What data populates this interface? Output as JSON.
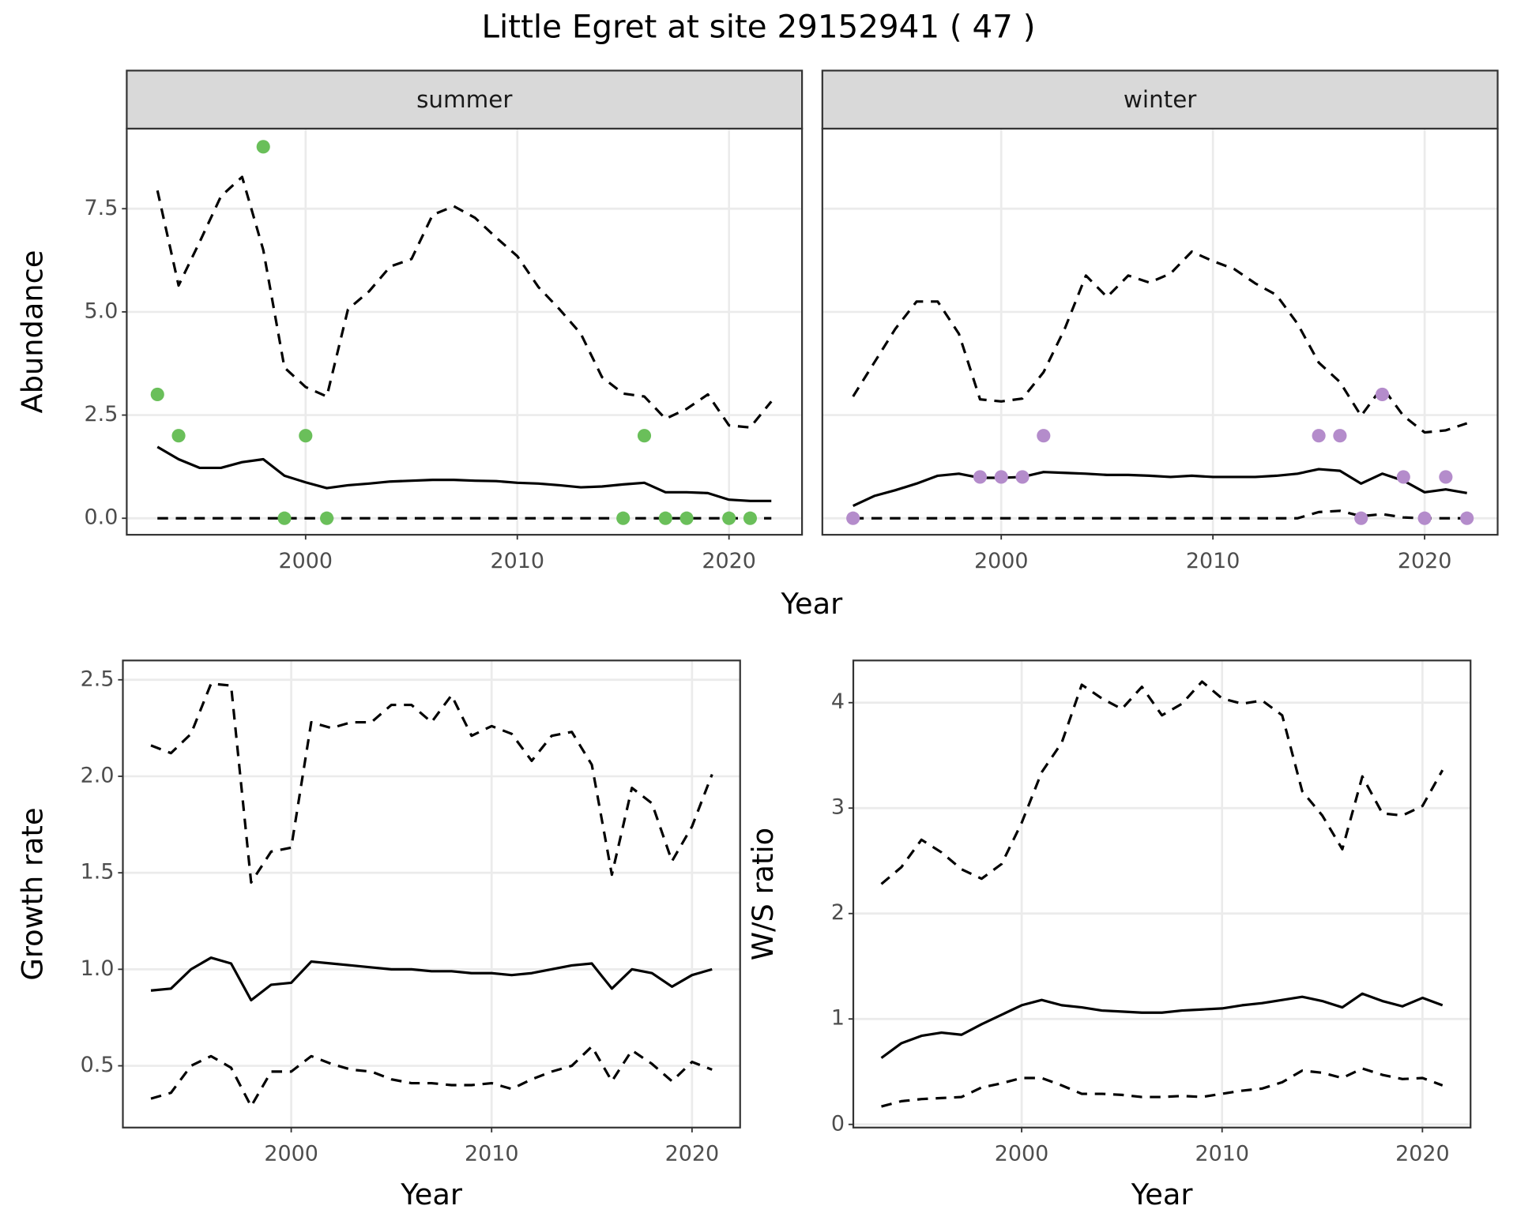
{
  "title": "Little Egret at site 29152941 ( 47 )",
  "chart_data": [
    {
      "type": "line",
      "xlabel": "Year",
      "ylabel": "Abundance",
      "grid": true,
      "xlim": [
        1991.55,
        2023.45
      ],
      "xticks": [
        2000,
        2010,
        2020
      ],
      "ylim": [
        -0.4,
        9.44
      ],
      "yticks": [
        {
          "value": 0,
          "label": "0.0"
        },
        2.5,
        {
          "value": 5,
          "label": "5.0"
        },
        7.5
      ],
      "facets": [
        {
          "title": "summer",
          "x": [
            1993,
            1994,
            1995,
            1996,
            1997,
            1998,
            1999,
            2000,
            2001,
            2002,
            2003,
            2004,
            2005,
            2006,
            2007,
            2008,
            2009,
            2010,
            2011,
            2012,
            2013,
            2014,
            2015,
            2016,
            2017,
            2018,
            2019,
            2020,
            2021,
            2022
          ],
          "series": [
            {
              "linestyle": "dashed",
              "color": "#000000",
              "values": [
                7.94,
                5.64,
                6.7,
                7.8,
                8.27,
                6.5,
                3.65,
                3.18,
                2.95,
                5.06,
                5.5,
                6.1,
                6.28,
                7.35,
                7.56,
                7.28,
                6.8,
                6.35,
                5.6,
                5.06,
                4.47,
                3.42,
                3.02,
                2.95,
                2.41,
                2.65,
                3.0,
                2.25,
                2.2,
                2.83
              ]
            },
            {
              "linestyle": "solid",
              "color": "#000000",
              "values": [
                1.73,
                1.43,
                1.22,
                1.22,
                1.36,
                1.43,
                1.03,
                0.87,
                0.73,
                0.8,
                0.84,
                0.89,
                0.91,
                0.93,
                0.93,
                0.91,
                0.9,
                0.86,
                0.84,
                0.8,
                0.75,
                0.77,
                0.82,
                0.86,
                0.63,
                0.63,
                0.61,
                0.45,
                0.42,
                0.42
              ]
            },
            {
              "linestyle": "dashed",
              "color": "#000000",
              "values": [
                0,
                0,
                0,
                0,
                0,
                0,
                0,
                0,
                0,
                0,
                0,
                0,
                0,
                0,
                0,
                0,
                0,
                0,
                0,
                0,
                0,
                0,
                0,
                0,
                0,
                0,
                0,
                0,
                0,
                0
              ]
            }
          ],
          "points": {
            "color": "#6abf5a",
            "x": [
              1993,
              1994,
              1998,
              1999,
              2000,
              2001,
              2015,
              2016,
              2017,
              2018,
              2020,
              2021
            ],
            "values": [
              3,
              2,
              9,
              0,
              2,
              0,
              0,
              2,
              0,
              0,
              0,
              0
            ]
          }
        },
        {
          "title": "winter",
          "x": [
            1993,
            1994,
            1995,
            1996,
            1997,
            1998,
            1999,
            2000,
            2001,
            2002,
            2003,
            2004,
            2005,
            2006,
            2007,
            2008,
            2009,
            2010,
            2011,
            2012,
            2013,
            2014,
            2015,
            2016,
            2017,
            2018,
            2019,
            2020,
            2021,
            2022
          ],
          "series": [
            {
              "linestyle": "dashed",
              "color": "#000000",
              "values": [
                2.95,
                3.77,
                4.59,
                5.25,
                5.25,
                4.47,
                2.88,
                2.83,
                2.9,
                3.54,
                4.59,
                5.88,
                5.36,
                5.88,
                5.71,
                5.93,
                6.46,
                6.23,
                6.04,
                5.69,
                5.41,
                4.71,
                3.77,
                3.3,
                2.48,
                3.18,
                2.48,
                2.08,
                2.13,
                2.3
              ]
            },
            {
              "linestyle": "solid",
              "color": "#000000",
              "values": [
                0.3,
                0.54,
                0.68,
                0.84,
                1.03,
                1.08,
                0.98,
                0.98,
                1.0,
                1.12,
                1.1,
                1.08,
                1.05,
                1.05,
                1.03,
                1.0,
                1.03,
                1.0,
                1.0,
                1.0,
                1.03,
                1.08,
                1.19,
                1.15,
                0.84,
                1.08,
                0.91,
                0.63,
                0.7,
                0.61
              ]
            },
            {
              "linestyle": "dashed",
              "color": "#000000",
              "values": [
                0,
                0,
                0,
                0,
                0,
                0,
                0,
                0,
                0,
                0,
                0,
                0,
                0,
                0,
                0,
                0,
                0,
                0,
                0,
                0,
                0,
                0,
                0.15,
                0.18,
                0.05,
                0.1,
                0.02,
                0,
                0,
                0
              ]
            }
          ],
          "points": {
            "color": "#b48ccb",
            "x": [
              1993,
              1999,
              2000,
              2001,
              2002,
              2015,
              2016,
              2017,
              2018,
              2019,
              2020,
              2021,
              2022
            ],
            "values": [
              0,
              1,
              1,
              1,
              2,
              2,
              2,
              0,
              3,
              1,
              0,
              1,
              0
            ]
          }
        }
      ]
    },
    {
      "type": "line",
      "xlabel": "Year",
      "ylabel": "Growth rate",
      "grid": true,
      "xlim": [
        1991.6,
        2022.4
      ],
      "xticks": [
        2000,
        2010,
        2020
      ],
      "ylim": [
        0.18,
        2.6
      ],
      "yticks": [
        0.5,
        {
          "value": 1,
          "label": "1.0"
        },
        1.5,
        {
          "value": 2,
          "label": "2.0"
        },
        2.5
      ],
      "x": [
        1993,
        1994,
        1995,
        1996,
        1997,
        1998,
        1999,
        2000,
        2001,
        2002,
        2003,
        2004,
        2005,
        2006,
        2007,
        2008,
        2009,
        2010,
        2011,
        2012,
        2013,
        2014,
        2015,
        2016,
        2017,
        2018,
        2019,
        2020,
        2021
      ],
      "series": [
        {
          "linestyle": "dashed",
          "color": "#000000",
          "values": [
            2.16,
            2.12,
            2.22,
            2.48,
            2.47,
            1.45,
            1.61,
            1.63,
            2.28,
            2.25,
            2.28,
            2.28,
            2.37,
            2.37,
            2.28,
            2.42,
            2.21,
            2.26,
            2.22,
            2.08,
            2.21,
            2.23,
            2.06,
            1.49,
            1.94,
            1.86,
            1.56,
            1.74,
            2.01
          ]
        },
        {
          "linestyle": "solid",
          "color": "#000000",
          "values": [
            0.89,
            0.9,
            1.0,
            1.06,
            1.03,
            0.84,
            0.92,
            0.93,
            1.04,
            1.03,
            1.02,
            1.01,
            1.0,
            1.0,
            0.99,
            0.99,
            0.98,
            0.98,
            0.97,
            0.98,
            1.0,
            1.02,
            1.03,
            0.9,
            1.0,
            0.98,
            0.91,
            0.97,
            1.0
          ]
        },
        {
          "linestyle": "dashed",
          "color": "#000000",
          "values": [
            0.33,
            0.36,
            0.5,
            0.55,
            0.49,
            0.29,
            0.47,
            0.47,
            0.55,
            0.51,
            0.48,
            0.47,
            0.43,
            0.41,
            0.41,
            0.4,
            0.4,
            0.41,
            0.38,
            0.43,
            0.47,
            0.5,
            0.6,
            0.42,
            0.58,
            0.51,
            0.42,
            0.52,
            0.48
          ]
        }
      ]
    },
    {
      "type": "line",
      "xlabel": "Year",
      "ylabel": "W/S ratio",
      "grid": true,
      "xlim": [
        1991.6,
        2022.4
      ],
      "xticks": [
        2000,
        2010,
        2020
      ],
      "ylim": [
        -0.03,
        4.4
      ],
      "yticks": [
        0,
        1,
        2,
        3,
        4
      ],
      "x": [
        1993,
        1994,
        1995,
        1996,
        1997,
        1998,
        1999,
        2000,
        2001,
        2002,
        2003,
        2004,
        2005,
        2006,
        2007,
        2008,
        2009,
        2010,
        2011,
        2012,
        2013,
        2014,
        2015,
        2016,
        2017,
        2018,
        2019,
        2020,
        2021
      ],
      "series": [
        {
          "linestyle": "dashed",
          "color": "#000000",
          "values": [
            2.28,
            2.44,
            2.7,
            2.58,
            2.42,
            2.33,
            2.47,
            2.86,
            3.34,
            3.62,
            4.17,
            4.04,
            3.94,
            4.15,
            3.88,
            3.99,
            4.2,
            4.04,
            3.99,
            4.02,
            3.88,
            3.16,
            2.93,
            2.61,
            3.3,
            2.95,
            2.93,
            3.02,
            3.36
          ]
        },
        {
          "linestyle": "solid",
          "color": "#000000",
          "values": [
            0.63,
            0.77,
            0.84,
            0.87,
            0.85,
            0.95,
            1.04,
            1.13,
            1.18,
            1.13,
            1.11,
            1.08,
            1.07,
            1.06,
            1.06,
            1.08,
            1.09,
            1.1,
            1.13,
            1.15,
            1.18,
            1.21,
            1.17,
            1.11,
            1.24,
            1.17,
            1.12,
            1.2,
            1.13
          ]
        },
        {
          "linestyle": "dashed",
          "color": "#000000",
          "values": [
            0.17,
            0.22,
            0.24,
            0.25,
            0.26,
            0.35,
            0.39,
            0.44,
            0.44,
            0.37,
            0.29,
            0.29,
            0.28,
            0.26,
            0.26,
            0.27,
            0.26,
            0.29,
            0.32,
            0.34,
            0.4,
            0.51,
            0.49,
            0.44,
            0.53,
            0.47,
            0.43,
            0.44,
            0.37
          ]
        }
      ]
    }
  ]
}
